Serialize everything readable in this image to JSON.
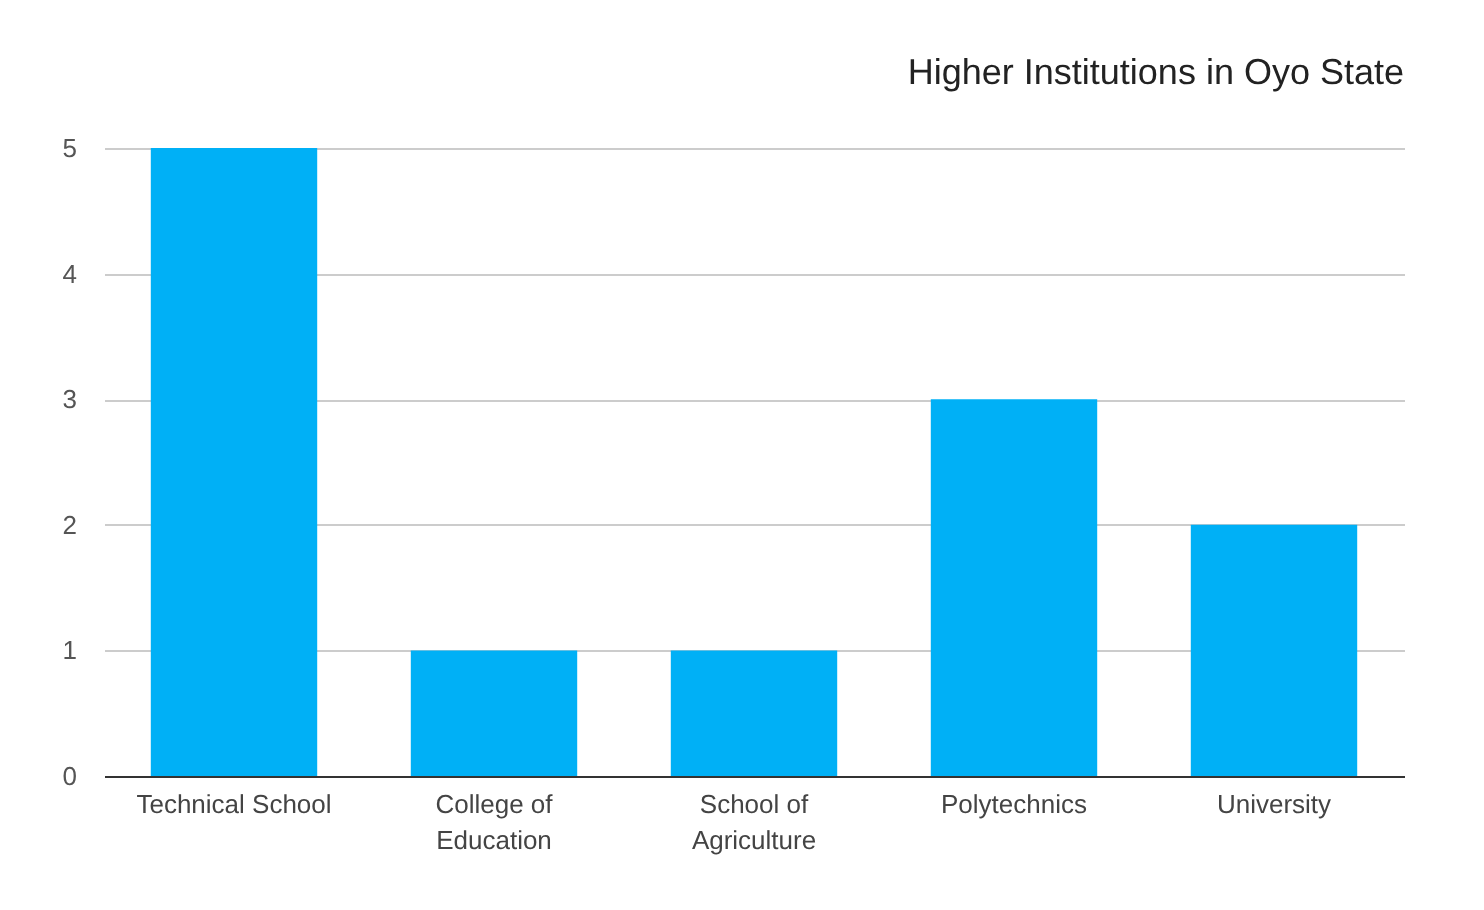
{
  "chart_data": {
    "type": "bar",
    "title": "Higher Institutions in Oyo State",
    "categories": [
      "Technical School",
      "College of Education",
      "School of Agriculture",
      "Polytechnics",
      "University"
    ],
    "values": [
      5,
      1,
      1,
      3,
      2
    ],
    "color": "#00b0f6",
    "ylim": [
      0,
      5
    ],
    "yticks": [
      0,
      1,
      2,
      3,
      4,
      5
    ],
    "grid": "y"
  }
}
